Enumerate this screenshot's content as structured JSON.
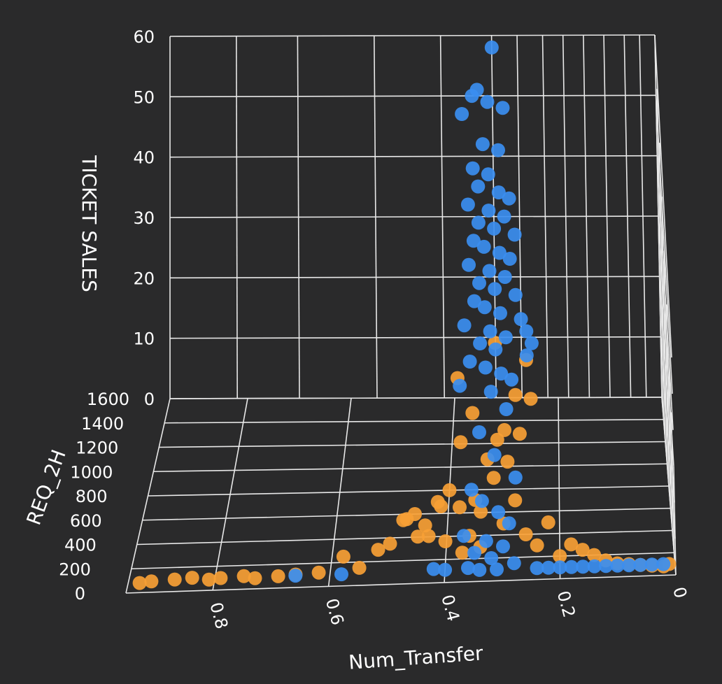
{
  "chart_data": {
    "type": "scatter3d",
    "axes": {
      "x": {
        "title": "Num_Transfer",
        "ticks": [
          "0.8",
          "0.6",
          "0.4",
          "0.2",
          "0"
        ],
        "range": [
          0.95,
          0.0
        ]
      },
      "y": {
        "title": "REQ_2H",
        "ticks": [
          "0",
          "200",
          "400",
          "600",
          "800",
          "1000",
          "1200",
          "1400",
          "1600"
        ],
        "range": [
          0,
          1600
        ]
      },
      "z": {
        "title": "TICKET SALES",
        "ticks": [
          "0",
          "10",
          "20",
          "30",
          "40",
          "50",
          "60"
        ],
        "range": [
          0,
          60
        ]
      }
    },
    "grid": true,
    "legend": "none",
    "colors": {
      "background": "#2a2a2b",
      "series_a": "#f7a035",
      "series_b": "#3b8ef0",
      "grid": "#e8e8e8",
      "text": "#ffffff"
    },
    "series": [
      {
        "color": "#f7a035",
        "points": [
          [
            0.93,
            80,
            0
          ],
          [
            0.91,
            90,
            0
          ],
          [
            0.87,
            100,
            0
          ],
          [
            0.84,
            110,
            0
          ],
          [
            0.81,
            90,
            0
          ],
          [
            0.79,
            100,
            0
          ],
          [
            0.75,
            110,
            0
          ],
          [
            0.73,
            90,
            0
          ],
          [
            0.69,
            100,
            0
          ],
          [
            0.66,
            110,
            0
          ],
          [
            0.62,
            120,
            0
          ],
          [
            0.58,
            250,
            0
          ],
          [
            0.55,
            150,
            0
          ],
          [
            0.52,
            300,
            0
          ],
          [
            0.5,
            350,
            0
          ],
          [
            0.48,
            550,
            0
          ],
          [
            0.46,
            600,
            0
          ],
          [
            0.44,
            500,
            0
          ],
          [
            0.42,
            700,
            0
          ],
          [
            0.4,
            800,
            0
          ],
          [
            0.38,
            650,
            0
          ],
          [
            0.36,
            400,
            0
          ],
          [
            0.34,
            300,
            0
          ],
          [
            0.32,
            900,
            0
          ],
          [
            0.3,
            500,
            0
          ],
          [
            0.28,
            700,
            0
          ],
          [
            0.26,
            400,
            0
          ],
          [
            0.24,
            300,
            0
          ],
          [
            0.22,
            500,
            0
          ],
          [
            0.2,
            200,
            0
          ],
          [
            0.18,
            300,
            0
          ],
          [
            0.16,
            250,
            0
          ],
          [
            0.14,
            200,
            0
          ],
          [
            0.12,
            150,
            0
          ],
          [
            0.1,
            120,
            0
          ],
          [
            0.08,
            110,
            0
          ],
          [
            0.06,
            100,
            0
          ],
          [
            0.04,
            90,
            0
          ],
          [
            0.02,
            80,
            0
          ],
          [
            0.01,
            100,
            0
          ],
          [
            0.45,
            300,
            2
          ],
          [
            0.4,
            200,
            3
          ],
          [
            0.35,
            500,
            4
          ],
          [
            0.33,
            800,
            5
          ],
          [
            0.3,
            1000,
            6
          ],
          [
            0.28,
            1200,
            8
          ],
          [
            0.26,
            1400,
            10
          ],
          [
            0.36,
            1100,
            7
          ],
          [
            0.38,
            900,
            6
          ],
          [
            0.31,
            600,
            12
          ],
          [
            0.29,
            300,
            14
          ],
          [
            0.41,
            400,
            5
          ],
          [
            0.43,
            250,
            3
          ],
          [
            0.47,
            350,
            4
          ],
          [
            0.39,
            1300,
            9
          ],
          [
            0.27,
            700,
            11
          ],
          [
            0.25,
            900,
            13
          ],
          [
            0.37,
            150,
            2
          ],
          [
            0.34,
            450,
            3
          ],
          [
            0.32,
            1500,
            11
          ]
        ]
      },
      {
        "color": "#3b8ef0",
        "points": [
          [
            0.32,
            1600,
            58
          ],
          [
            0.35,
            1600,
            51
          ],
          [
            0.33,
            1600,
            49
          ],
          [
            0.36,
            1600,
            50
          ],
          [
            0.38,
            1600,
            47
          ],
          [
            0.3,
            1600,
            48
          ],
          [
            0.34,
            1600,
            42
          ],
          [
            0.31,
            1600,
            41
          ],
          [
            0.36,
            1600,
            38
          ],
          [
            0.33,
            1600,
            37
          ],
          [
            0.35,
            1600,
            35
          ],
          [
            0.31,
            1600,
            34
          ],
          [
            0.29,
            1600,
            33
          ],
          [
            0.37,
            1600,
            32
          ],
          [
            0.33,
            1600,
            31
          ],
          [
            0.3,
            1600,
            30
          ],
          [
            0.35,
            1600,
            29
          ],
          [
            0.32,
            1600,
            28
          ],
          [
            0.28,
            1600,
            27
          ],
          [
            0.36,
            1600,
            26
          ],
          [
            0.34,
            1600,
            25
          ],
          [
            0.31,
            1600,
            24
          ],
          [
            0.29,
            1600,
            23
          ],
          [
            0.37,
            1600,
            22
          ],
          [
            0.33,
            1600,
            21
          ],
          [
            0.3,
            1600,
            20
          ],
          [
            0.35,
            1600,
            19
          ],
          [
            0.32,
            1600,
            18
          ],
          [
            0.28,
            1600,
            17
          ],
          [
            0.36,
            1600,
            16
          ],
          [
            0.34,
            1600,
            15
          ],
          [
            0.31,
            1600,
            14
          ],
          [
            0.27,
            1600,
            13
          ],
          [
            0.38,
            1600,
            12
          ],
          [
            0.33,
            1600,
            11
          ],
          [
            0.3,
            1600,
            10
          ],
          [
            0.35,
            1600,
            9
          ],
          [
            0.32,
            1600,
            8
          ],
          [
            0.26,
            1600,
            7
          ],
          [
            0.37,
            1600,
            6
          ],
          [
            0.34,
            1600,
            5
          ],
          [
            0.31,
            1600,
            4
          ],
          [
            0.29,
            1600,
            3
          ],
          [
            0.39,
            1600,
            2
          ],
          [
            0.33,
            1600,
            1
          ],
          [
            0.3,
            1500,
            0
          ],
          [
            0.35,
            1300,
            0
          ],
          [
            0.32,
            1100,
            0
          ],
          [
            0.28,
            900,
            0
          ],
          [
            0.36,
            800,
            0
          ],
          [
            0.34,
            700,
            0
          ],
          [
            0.31,
            600,
            0
          ],
          [
            0.29,
            500,
            0
          ],
          [
            0.37,
            400,
            0
          ],
          [
            0.33,
            350,
            0
          ],
          [
            0.3,
            300,
            0
          ],
          [
            0.35,
            250,
            0
          ],
          [
            0.32,
            200,
            0
          ],
          [
            0.28,
            150,
            0
          ],
          [
            0.36,
            120,
            0
          ],
          [
            0.34,
            100,
            0
          ],
          [
            0.31,
            100,
            0
          ],
          [
            0.24,
            100,
            0
          ],
          [
            0.22,
            100,
            0
          ],
          [
            0.2,
            100,
            0
          ],
          [
            0.18,
            100,
            0
          ],
          [
            0.16,
            100,
            0
          ],
          [
            0.14,
            100,
            0
          ],
          [
            0.12,
            100,
            0
          ],
          [
            0.1,
            100,
            0
          ],
          [
            0.08,
            100,
            0
          ],
          [
            0.06,
            100,
            0
          ],
          [
            0.04,
            100,
            0
          ],
          [
            0.02,
            100,
            0
          ],
          [
            0.4,
            110,
            0
          ],
          [
            0.42,
            120,
            0
          ],
          [
            0.58,
            100,
            0
          ],
          [
            0.66,
            100,
            0
          ],
          [
            0.26,
            1600,
            11
          ],
          [
            0.25,
            1600,
            9
          ]
        ]
      }
    ]
  }
}
